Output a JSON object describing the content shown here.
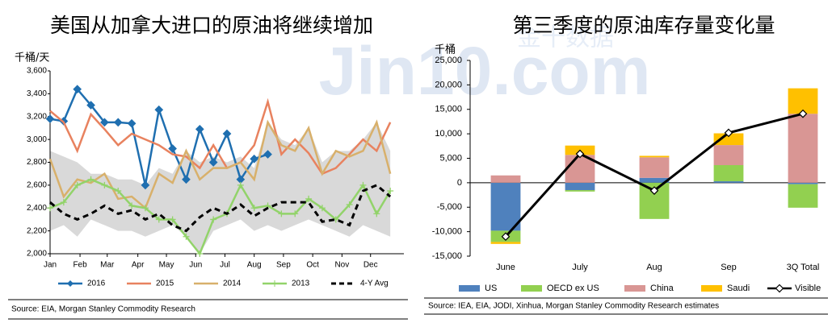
{
  "watermark": [
    "Jin10.com",
    "金十数据"
  ],
  "chart_data": [
    {
      "type": "line",
      "title": "美国从加拿大进口的原油将继续增加",
      "ylabel": "千桶/天",
      "source": "Source: EIA, Morgan Stanley Commodity Research",
      "x": [
        0,
        2,
        4,
        6,
        8,
        10,
        12,
        14,
        16,
        18,
        20,
        22,
        24,
        26,
        28,
        30,
        32,
        34,
        36,
        38,
        40,
        42,
        44,
        46,
        48,
        50
      ],
      "xlim": [
        0,
        52
      ],
      "xticks": [
        {
          "value": 0,
          "label": "Jan"
        },
        {
          "value": 4.4,
          "label": "Feb"
        },
        {
          "value": 8.4,
          "label": "Mar"
        },
        {
          "value": 12.9,
          "label": "Apr"
        },
        {
          "value": 17.1,
          "label": "May"
        },
        {
          "value": 21.4,
          "label": "Jun"
        },
        {
          "value": 25.7,
          "label": "Jul"
        },
        {
          "value": 30,
          "label": "Aug"
        },
        {
          "value": 34.3,
          "label": "Sep"
        },
        {
          "value": 38.6,
          "label": "Oct"
        },
        {
          "value": 42.9,
          "label": "Nov"
        },
        {
          "value": 47.1,
          "label": "Dec"
        }
      ],
      "ylim": [
        2000,
        3600
      ],
      "yticks": [
        {
          "value": 2000,
          "label": "2,000"
        },
        {
          "value": 2200,
          "label": "2,200"
        },
        {
          "value": 2400,
          "label": "2,400"
        },
        {
          "value": 2600,
          "label": "2,600"
        },
        {
          "value": 2800,
          "label": "2,800"
        },
        {
          "value": 3000,
          "label": "3,000"
        },
        {
          "value": 3200,
          "label": "3,200"
        },
        {
          "value": 3400,
          "label": "3,400"
        },
        {
          "value": 3600,
          "label": "3,600"
        }
      ],
      "grid": false,
      "band": {
        "color": "#d9d9d9",
        "lower": [
          2200,
          2250,
          2150,
          2300,
          2250,
          2200,
          2200,
          2150,
          2200,
          2250,
          2150,
          2000,
          2200,
          2250,
          2300,
          2200,
          2250,
          2200,
          2250,
          2300,
          2250,
          2200,
          2150,
          2250,
          2200,
          2150
        ],
        "upper": [
          2900,
          2850,
          2800,
          2700,
          2700,
          2650,
          2650,
          2600,
          2750,
          2700,
          2900,
          2800,
          2850,
          2800,
          2850,
          2750,
          3150,
          3000,
          2950,
          3100,
          2800,
          2900,
          2900,
          3000,
          3150,
          2900
        ]
      },
      "series": [
        {
          "name": "2016",
          "color": "#1f6fb0",
          "marker": "diamond",
          "values": [
            3180,
            3160,
            3440,
            3300,
            3150,
            3150,
            3140,
            2600,
            3260,
            2920,
            2650,
            3090,
            2800,
            3050,
            2650,
            2830,
            2870,
            null,
            null,
            null,
            null,
            null,
            null,
            null,
            null,
            null
          ]
        },
        {
          "name": "2015",
          "color": "#e8825f",
          "values": [
            3250,
            3150,
            2900,
            3220,
            3090,
            2950,
            3050,
            3000,
            2950,
            2870,
            2850,
            2750,
            2950,
            2750,
            2800,
            2950,
            3330,
            2870,
            3000,
            2880,
            2700,
            2750,
            2870,
            3000,
            2900,
            3150
          ]
        },
        {
          "name": "2014",
          "color": "#d8b06b",
          "values": [
            2830,
            2500,
            2650,
            2620,
            2700,
            2480,
            2500,
            2400,
            2700,
            2620,
            2900,
            2650,
            2750,
            2750,
            2800,
            2650,
            3150,
            2950,
            2900,
            3100,
            2700,
            2900,
            2850,
            2900,
            3150,
            2700
          ]
        },
        {
          "name": "2013",
          "color": "#92d36a",
          "marker": "plus",
          "values": [
            2400,
            2450,
            2600,
            2650,
            2600,
            2550,
            2420,
            2400,
            2300,
            2300,
            2150,
            2000,
            2300,
            2350,
            2600,
            2400,
            2420,
            2350,
            2350,
            2480,
            2400,
            2300,
            2430,
            2600,
            2350,
            2550
          ]
        },
        {
          "name": "4-Y Avg",
          "color": "#000000",
          "dash": true,
          "values": [
            2450,
            2350,
            2300,
            2350,
            2420,
            2350,
            2380,
            2300,
            2350,
            2250,
            2200,
            2320,
            2400,
            2350,
            2430,
            2330,
            2400,
            2450,
            2450,
            2450,
            2280,
            2300,
            2250,
            2550,
            2600,
            2500
          ]
        }
      ]
    },
    {
      "type": "bar",
      "stacked": true,
      "title": "第三季度的原油库存量变化量",
      "ylabel": "千桶",
      "source": "Source: IEA, EIA, JODI, Xinhua, Morgan Stanley Commodity Research estimates",
      "categories": [
        "June",
        "July",
        "Aug",
        "Sep",
        "3Q Total"
      ],
      "ylim": [
        -15000,
        25000
      ],
      "yticks": [
        {
          "value": -15000,
          "label": "-15,000"
        },
        {
          "value": -10000,
          "label": "-10,000"
        },
        {
          "value": -5000,
          "label": "-5,000"
        },
        0,
        {
          "value": 5000,
          "label": "5,000"
        },
        {
          "value": 10000,
          "label": "10,000"
        },
        {
          "value": 15000,
          "label": "15,000"
        },
        {
          "value": 20000,
          "label": "20,000"
        },
        {
          "value": 25000,
          "label": "25,000"
        }
      ],
      "grid": false,
      "series": [
        {
          "name": "US",
          "color": "#4f81bd",
          "values": [
            -9800,
            -1500,
            1000,
            300,
            -300
          ]
        },
        {
          "name": "OECD ex US",
          "color": "#92d050",
          "values": [
            -2300,
            -300,
            -7400,
            3300,
            -4800
          ]
        },
        {
          "name": "China",
          "color": "#d99694",
          "values": [
            1500,
            5700,
            4200,
            4100,
            14100
          ]
        },
        {
          "name": "Saudi",
          "color": "#ffc000",
          "values": [
            -400,
            1900,
            300,
            2400,
            5200
          ]
        },
        {
          "name": "Visible",
          "color": "#000000",
          "type": "line",
          "marker": "diamond",
          "values": [
            -11000,
            5900,
            -1600,
            10200,
            14100
          ]
        }
      ]
    }
  ]
}
